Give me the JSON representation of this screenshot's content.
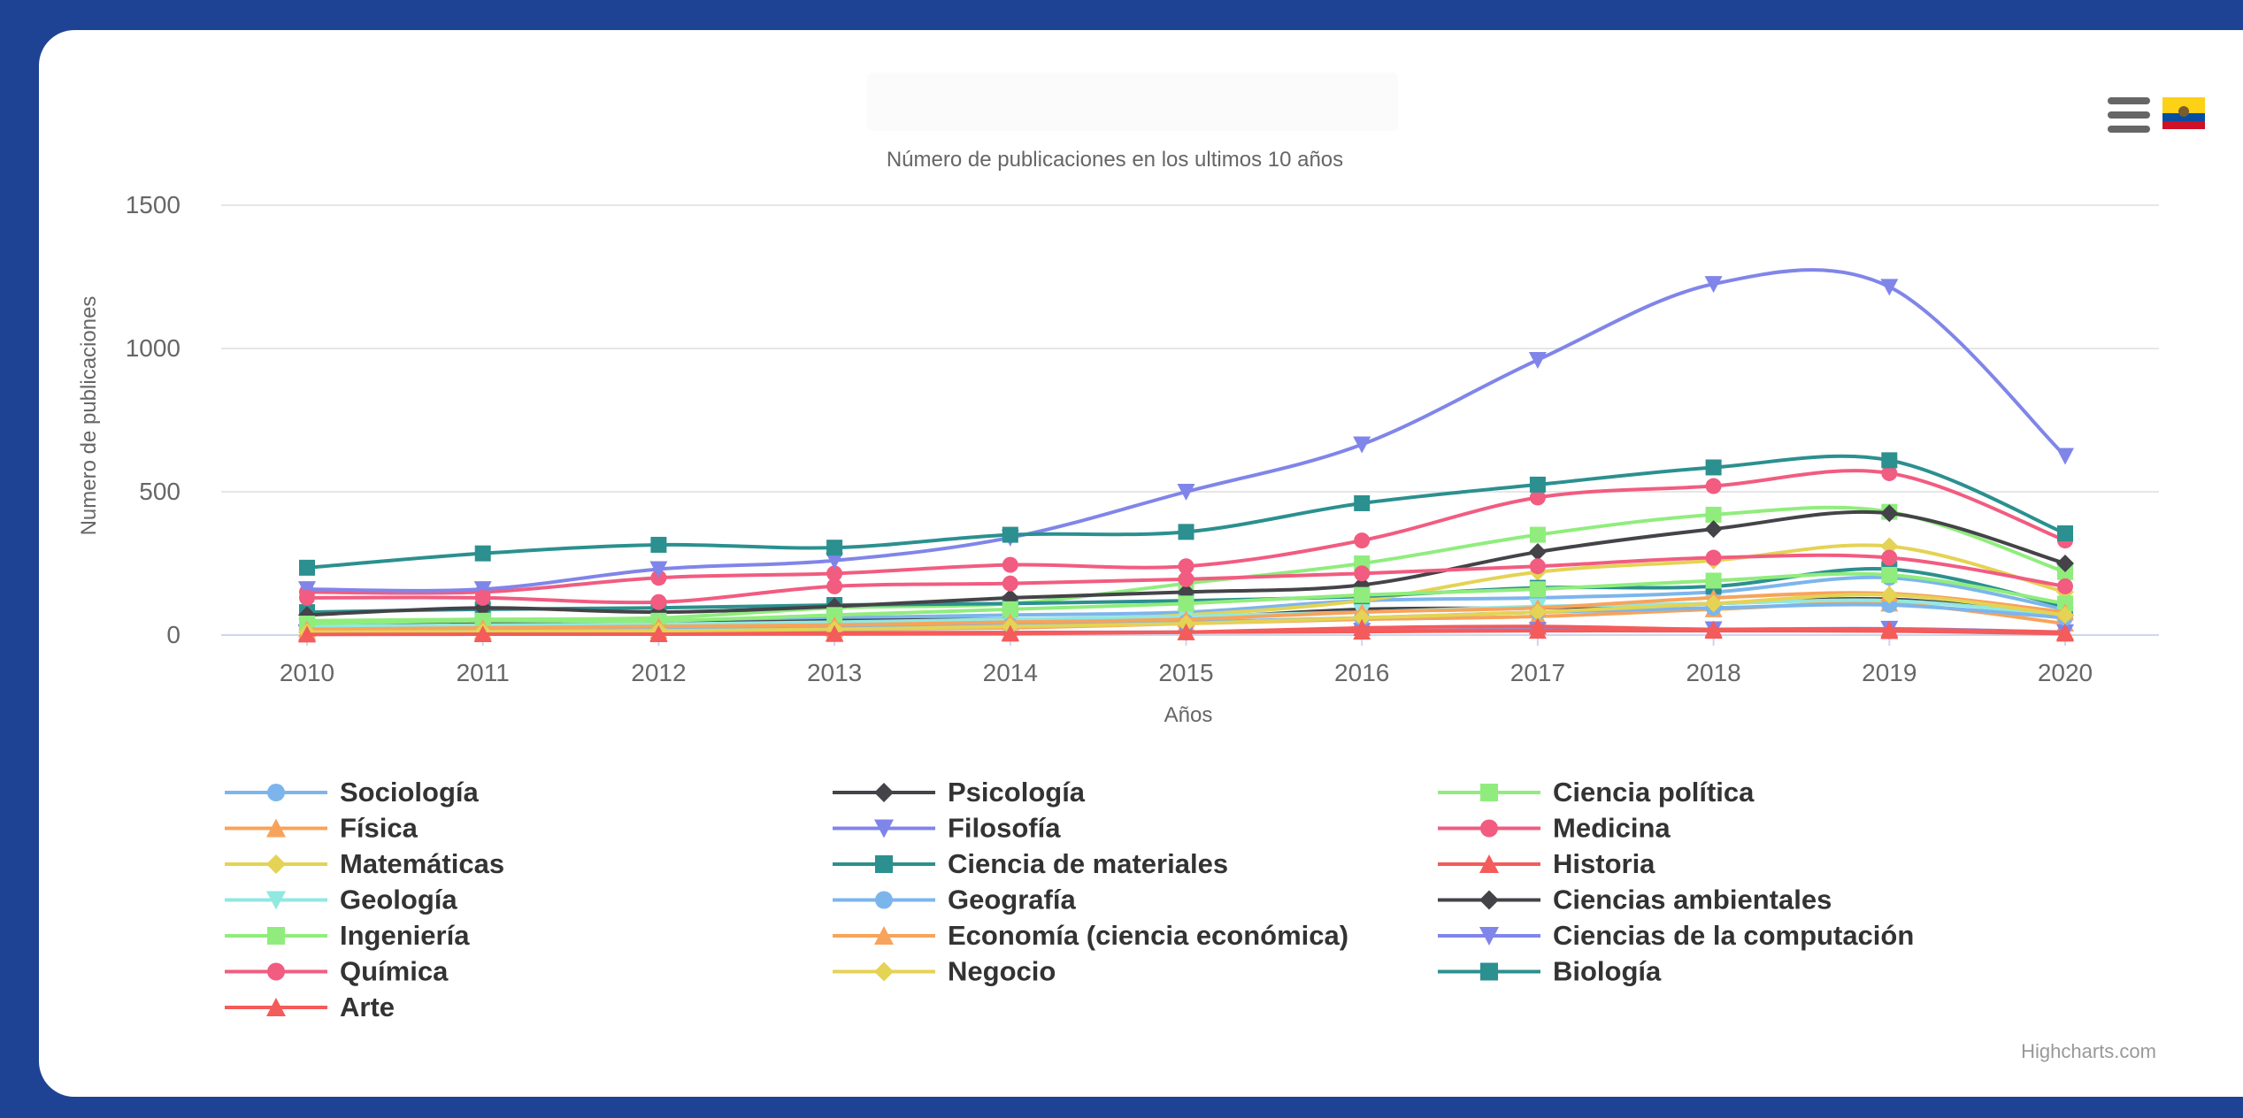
{
  "subtitle": "Número de publicaciones en los ultimos 10 años",
  "credits": "Highcharts.com",
  "icons": {
    "menu": "hamburger-menu-icon",
    "flag": "ecuador-flag-icon"
  },
  "chart_data": {
    "type": "line",
    "subtitle": "Número de publicaciones en los ultimos 10 años",
    "xlabel": "Años",
    "ylabel": "Numero de publicaciones",
    "x": [
      "2010",
      "2011",
      "2012",
      "2013",
      "2014",
      "2015",
      "2016",
      "2017",
      "2018",
      "2019",
      "2020"
    ],
    "yticks": [
      "0",
      "500",
      "1000",
      "1500"
    ],
    "ylim": [
      0,
      1500
    ],
    "grid": true,
    "legend_placement": "bottom",
    "series": [
      {
        "name": "Sociología",
        "color": "#7cb5ec",
        "marker": "circle",
        "values": [
          40,
          45,
          50,
          60,
          70,
          80,
          120,
          130,
          150,
          200,
          90
        ]
      },
      {
        "name": "Psicología",
        "color": "#434348",
        "marker": "diamond",
        "values": [
          35,
          40,
          40,
          50,
          55,
          60,
          90,
          95,
          110,
          125,
          70
        ]
      },
      {
        "name": "Ciencia política",
        "color": "#90ed7d",
        "marker": "square",
        "values": [
          50,
          55,
          60,
          95,
          110,
          180,
          250,
          350,
          420,
          430,
          220
        ]
      },
      {
        "name": "Física",
        "color": "#f7a35c",
        "marker": "triangle",
        "values": [
          10,
          12,
          15,
          20,
          25,
          40,
          55,
          65,
          90,
          110,
          40
        ]
      },
      {
        "name": "Filosofía",
        "color": "#8085e9",
        "marker": "triangle-down",
        "values": [
          5,
          6,
          7,
          8,
          9,
          10,
          15,
          18,
          20,
          22,
          10
        ]
      },
      {
        "name": "Medicina",
        "color": "#f15c80",
        "marker": "circle",
        "values": [
          150,
          150,
          200,
          215,
          245,
          240,
          330,
          480,
          520,
          565,
          330
        ]
      },
      {
        "name": "Matemáticas",
        "color": "#e4d354",
        "marker": "diamond",
        "values": [
          20,
          25,
          30,
          40,
          50,
          70,
          120,
          220,
          260,
          310,
          150
        ]
      },
      {
        "name": "Ciencia de materiales",
        "color": "#2b908f",
        "marker": "square",
        "values": [
          80,
          90,
          95,
          105,
          110,
          120,
          135,
          165,
          170,
          230,
          100
        ]
      },
      {
        "name": "Historia",
        "color": "#f45b5b",
        "marker": "triangle",
        "values": [
          5,
          5,
          6,
          7,
          8,
          10,
          12,
          15,
          15,
          14,
          5
        ]
      },
      {
        "name": "Geología",
        "color": "#91e8e1",
        "marker": "triangle-down",
        "values": [
          30,
          35,
          38,
          45,
          55,
          65,
          80,
          100,
          110,
          120,
          70
        ]
      },
      {
        "name": "Geografía",
        "color": "#7cb5ec",
        "marker": "circle",
        "values": [
          15,
          18,
          20,
          25,
          35,
          45,
          60,
          80,
          95,
          105,
          60
        ]
      },
      {
        "name": "Ciencias ambientales",
        "color": "#434348",
        "marker": "diamond",
        "values": [
          70,
          95,
          80,
          100,
          130,
          150,
          175,
          290,
          370,
          425,
          250
        ]
      },
      {
        "name": "Ingeniería",
        "color": "#90ed7d",
        "marker": "square",
        "values": [
          40,
          50,
          50,
          70,
          90,
          110,
          140,
          160,
          190,
          210,
          110
        ]
      },
      {
        "name": "Economía (ciencia económica)",
        "color": "#f7a35c",
        "marker": "triangle",
        "values": [
          20,
          25,
          30,
          35,
          45,
          55,
          80,
          95,
          130,
          145,
          80
        ]
      },
      {
        "name": "Ciencias de la computación",
        "color": "#8085e9",
        "marker": "triangle-down",
        "values": [
          160,
          160,
          230,
          260,
          340,
          500,
          665,
          960,
          1225,
          1215,
          625
        ]
      },
      {
        "name": "Química",
        "color": "#f15c80",
        "marker": "circle",
        "values": [
          130,
          130,
          115,
          170,
          180,
          195,
          215,
          240,
          270,
          270,
          170
        ]
      },
      {
        "name": "Negocio",
        "color": "#e4d354",
        "marker": "diamond",
        "values": [
          10,
          12,
          15,
          20,
          30,
          40,
          60,
          80,
          110,
          140,
          70
        ]
      },
      {
        "name": "Biología",
        "color": "#2b908f",
        "marker": "square",
        "values": [
          235,
          285,
          315,
          305,
          350,
          360,
          460,
          525,
          585,
          610,
          355
        ]
      },
      {
        "name": "Arte",
        "color": "#f45b5b",
        "marker": "triangle",
        "values": [
          2,
          3,
          3,
          4,
          5,
          10,
          25,
          30,
          20,
          20,
          10
        ]
      }
    ]
  }
}
